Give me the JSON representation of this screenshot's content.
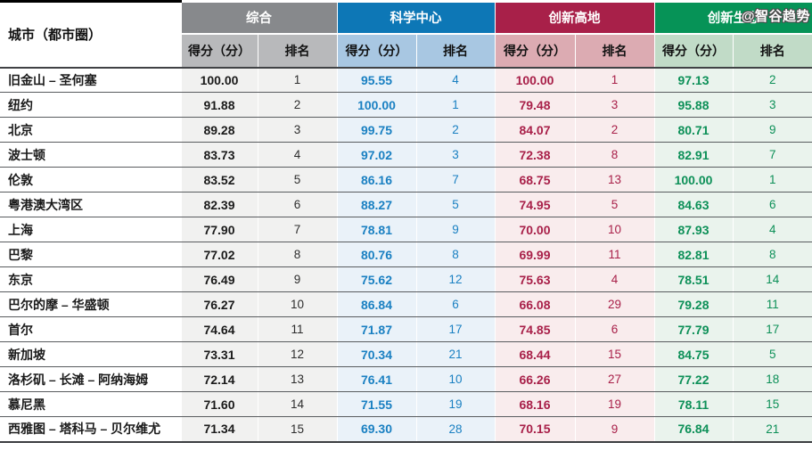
{
  "watermark": "@智谷趋势",
  "chart_data": {
    "type": "table",
    "city_header": "城市（都市圈）",
    "score_label": "得分（分）",
    "rank_label": "排名",
    "groups": [
      {
        "label": "综合",
        "header_bg": "#87898c",
        "subheader_bg": "#b8b9bb",
        "cell_bg": "#f1f1f0",
        "score_color": "#1a1a1a",
        "rank_color": "#2d2d2d",
        "header_text_color": "#ffffff"
      },
      {
        "label": "科学中心",
        "header_bg": "#0d77b6",
        "subheader_bg": "#a8c7e2",
        "cell_bg": "#eaf2f9",
        "score_color": "#1a80c2",
        "rank_color": "#1a80c2",
        "header_text_color": "#ffffff"
      },
      {
        "label": "创新高地",
        "header_bg": "#a82049",
        "subheader_bg": "#dcabb2",
        "cell_bg": "#f9eced",
        "score_color": "#a82049",
        "rank_color": "#a82049",
        "header_text_color": "#ffffff"
      },
      {
        "label": "创新生态",
        "header_bg": "#069357",
        "subheader_bg": "#c1dbc7",
        "cell_bg": "#eaf3ed",
        "score_color": "#0d9058",
        "rank_color": "#0d9058",
        "header_text_color": "#ffffff"
      }
    ],
    "rows": [
      {
        "city": "旧金山 – 圣何塞",
        "scores": [
          "100.00",
          "95.55",
          "100.00",
          "97.13"
        ],
        "ranks": [
          "1",
          "4",
          "1",
          "2"
        ]
      },
      {
        "city": "纽约",
        "scores": [
          "91.88",
          "100.00",
          "79.48",
          "95.88"
        ],
        "ranks": [
          "2",
          "1",
          "3",
          "3"
        ]
      },
      {
        "city": "北京",
        "scores": [
          "89.28",
          "99.75",
          "84.07",
          "80.71"
        ],
        "ranks": [
          "3",
          "2",
          "2",
          "9"
        ]
      },
      {
        "city": "波士顿",
        "scores": [
          "83.73",
          "97.02",
          "72.38",
          "82.91"
        ],
        "ranks": [
          "4",
          "3",
          "8",
          "7"
        ]
      },
      {
        "city": "伦敦",
        "scores": [
          "83.52",
          "86.16",
          "68.75",
          "100.00"
        ],
        "ranks": [
          "5",
          "7",
          "13",
          "1"
        ]
      },
      {
        "city": "粤港澳大湾区",
        "scores": [
          "82.39",
          "88.27",
          "74.95",
          "84.63"
        ],
        "ranks": [
          "6",
          "5",
          "5",
          "6"
        ]
      },
      {
        "city": "上海",
        "scores": [
          "77.90",
          "78.81",
          "70.00",
          "87.93"
        ],
        "ranks": [
          "7",
          "9",
          "10",
          "4"
        ]
      },
      {
        "city": "巴黎",
        "scores": [
          "77.02",
          "80.76",
          "69.99",
          "82.81"
        ],
        "ranks": [
          "8",
          "8",
          "11",
          "8"
        ]
      },
      {
        "city": "东京",
        "scores": [
          "76.49",
          "75.62",
          "75.63",
          "78.51"
        ],
        "ranks": [
          "9",
          "12",
          "4",
          "14"
        ]
      },
      {
        "city": "巴尔的摩 – 华盛顿",
        "scores": [
          "76.27",
          "86.84",
          "66.08",
          "79.28"
        ],
        "ranks": [
          "10",
          "6",
          "29",
          "11"
        ]
      },
      {
        "city": "首尔",
        "scores": [
          "74.64",
          "71.87",
          "74.85",
          "77.79"
        ],
        "ranks": [
          "11",
          "17",
          "6",
          "17"
        ]
      },
      {
        "city": "新加坡",
        "scores": [
          "73.31",
          "70.34",
          "68.44",
          "84.75"
        ],
        "ranks": [
          "12",
          "21",
          "15",
          "5"
        ]
      },
      {
        "city": "洛杉矶 – 长滩 – 阿纳海姆",
        "scores": [
          "72.14",
          "76.41",
          "66.26",
          "77.22"
        ],
        "ranks": [
          "13",
          "10",
          "27",
          "18"
        ]
      },
      {
        "city": "慕尼黑",
        "scores": [
          "71.60",
          "71.55",
          "68.16",
          "78.11"
        ],
        "ranks": [
          "14",
          "19",
          "19",
          "15"
        ]
      },
      {
        "city": "西雅图 – 塔科马 – 贝尔维尤",
        "scores": [
          "71.34",
          "69.30",
          "70.15",
          "76.84"
        ],
        "ranks": [
          "15",
          "28",
          "9",
          "21"
        ]
      }
    ]
  }
}
